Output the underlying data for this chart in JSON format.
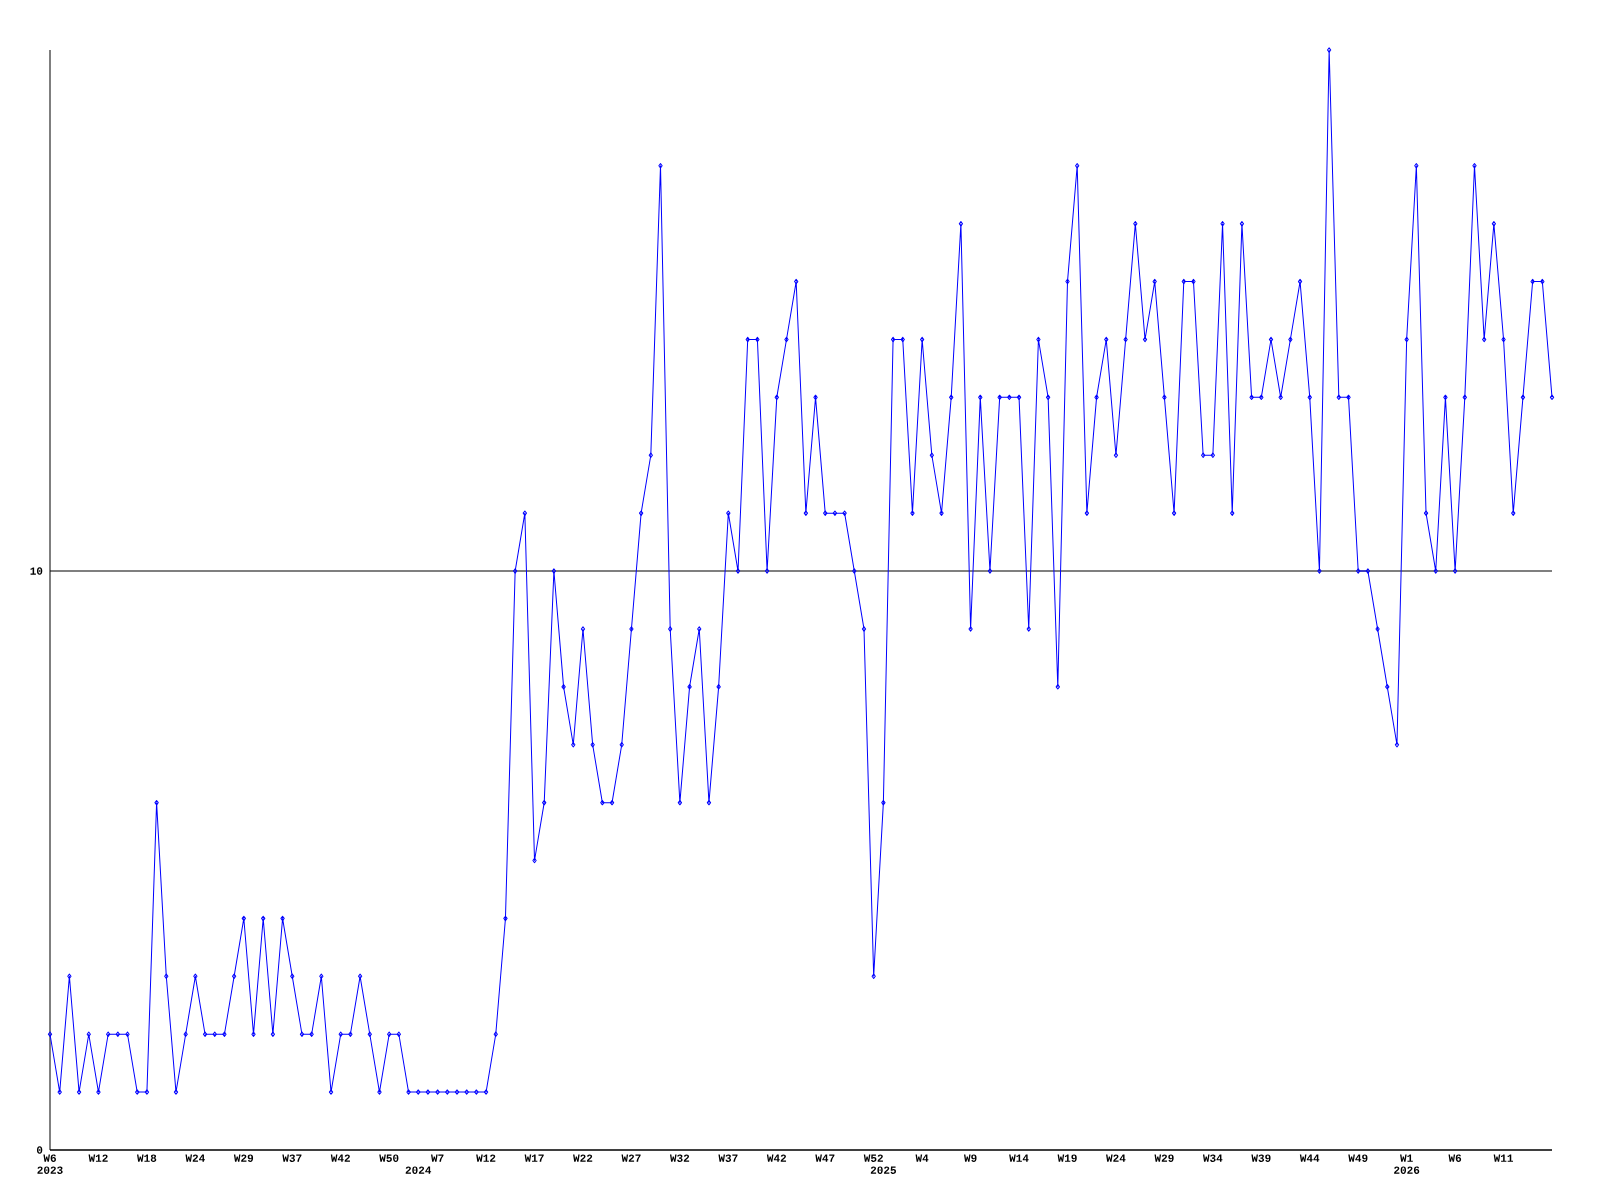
{
  "chart_data": {
    "type": "line",
    "categories": [
      "W6 2023",
      null,
      null,
      null,
      null,
      "W12",
      null,
      null,
      null,
      null,
      "W18",
      null,
      null,
      null,
      null,
      "W24",
      null,
      null,
      null,
      null,
      "W29",
      null,
      null,
      null,
      null,
      "W37",
      null,
      null,
      null,
      null,
      "W42",
      null,
      null,
      null,
      null,
      "W50",
      null,
      null,
      "2024",
      null,
      "W7",
      null,
      null,
      null,
      null,
      "W12",
      null,
      null,
      null,
      null,
      "W17",
      null,
      null,
      null,
      null,
      "W22",
      null,
      null,
      null,
      null,
      "W27",
      null,
      null,
      null,
      null,
      "W32",
      null,
      null,
      null,
      null,
      "W37",
      null,
      null,
      null,
      null,
      "W42",
      null,
      null,
      null,
      null,
      "W47",
      null,
      null,
      null,
      null,
      "W52",
      "2025",
      null,
      null,
      null,
      "W4",
      null,
      null,
      null,
      null,
      "W9",
      null,
      null,
      null,
      null,
      "W14",
      null,
      null,
      null,
      null,
      "W19",
      null,
      null,
      null,
      null,
      "W24",
      null,
      null,
      null,
      null,
      "W29",
      null,
      null,
      null,
      null,
      "W34",
      null,
      null,
      null,
      null,
      "W39",
      null,
      null,
      null,
      null,
      "W44",
      null,
      null,
      null,
      null,
      "W49",
      null,
      null,
      null,
      null,
      "W1 2026",
      null,
      null,
      null,
      null,
      "W6",
      null,
      null,
      null,
      null,
      "W11",
      null,
      null,
      null,
      null,
      null
    ],
    "values": [
      2,
      1,
      3,
      1,
      2,
      1,
      2,
      2,
      2,
      1,
      1,
      6,
      3,
      1,
      2,
      3,
      2,
      2,
      2,
      3,
      4,
      2,
      4,
      2,
      4,
      3,
      2,
      2,
      3,
      1,
      2,
      2,
      3,
      2,
      1,
      2,
      2,
      1,
      1,
      1,
      1,
      1,
      1,
      1,
      1,
      1,
      2,
      4,
      10,
      11,
      5,
      6,
      10,
      8,
      7,
      9,
      7,
      6,
      6,
      7,
      9,
      11,
      12,
      17,
      9,
      6,
      8,
      9,
      6,
      8,
      11,
      10,
      14,
      14,
      10,
      13,
      14,
      15,
      11,
      13,
      11,
      11,
      11,
      10,
      9,
      3,
      6,
      14,
      14,
      11,
      14,
      12,
      11,
      13,
      16,
      9,
      13,
      10,
      13,
      13,
      13,
      9,
      14,
      13,
      8,
      15,
      17,
      11,
      13,
      14,
      12,
      14,
      16,
      14,
      15,
      13,
      11,
      15,
      15,
      12,
      12,
      16,
      11,
      16,
      13,
      13,
      14,
      13,
      14,
      15,
      13,
      10,
      19,
      13,
      13,
      10,
      10,
      9,
      8,
      7,
      14,
      17,
      11,
      10,
      13,
      10,
      13,
      17,
      14,
      16,
      14,
      11,
      13,
      15,
      15,
      13
    ],
    "color": "#0000ff",
    "ylim": [
      0,
      19
    ],
    "yticks": [
      0,
      10
    ],
    "grid": "y",
    "marker": "diamond"
  }
}
